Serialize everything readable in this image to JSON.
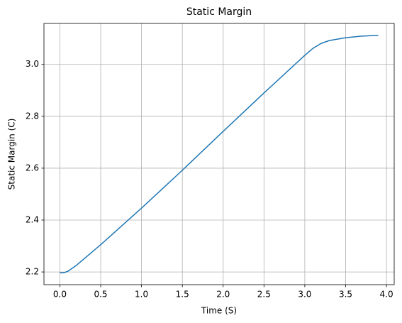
{
  "chart_data": {
    "type": "line",
    "title": "Static Margin",
    "x_label": "Time (S)",
    "y_label": "Static Margin (C)",
    "x": [
      0,
      0.05,
      0.1,
      0.2,
      0.5,
      1.0,
      1.5,
      2.0,
      2.5,
      3.0,
      3.1,
      3.2,
      3.3,
      3.5,
      3.7,
      3.9
    ],
    "series": [
      {
        "name": "Static Margin",
        "color": "#1f77b4",
        "values": [
          2.197,
          2.197,
          2.203,
          2.225,
          2.305,
          2.446,
          2.592,
          2.742,
          2.89,
          3.035,
          3.062,
          3.081,
          3.092,
          3.103,
          3.109,
          3.112
        ]
      }
    ],
    "xlim": [
      -0.195,
      4.095
    ],
    "xticks": [
      {
        "value": 0,
        "label": "0.0"
      },
      0.5,
      {
        "value": 1,
        "label": "1.0"
      },
      1.5,
      {
        "value": 2,
        "label": "2.0"
      },
      2.5,
      {
        "value": 3,
        "label": "3.0"
      },
      3.5,
      {
        "value": 4,
        "label": "4.0"
      }
    ],
    "ylim": [
      2.151,
      3.158
    ],
    "yticks": [
      2.2,
      2.4,
      2.6,
      2.8,
      {
        "value": 3,
        "label": "3.0"
      }
    ],
    "grid": true
  }
}
